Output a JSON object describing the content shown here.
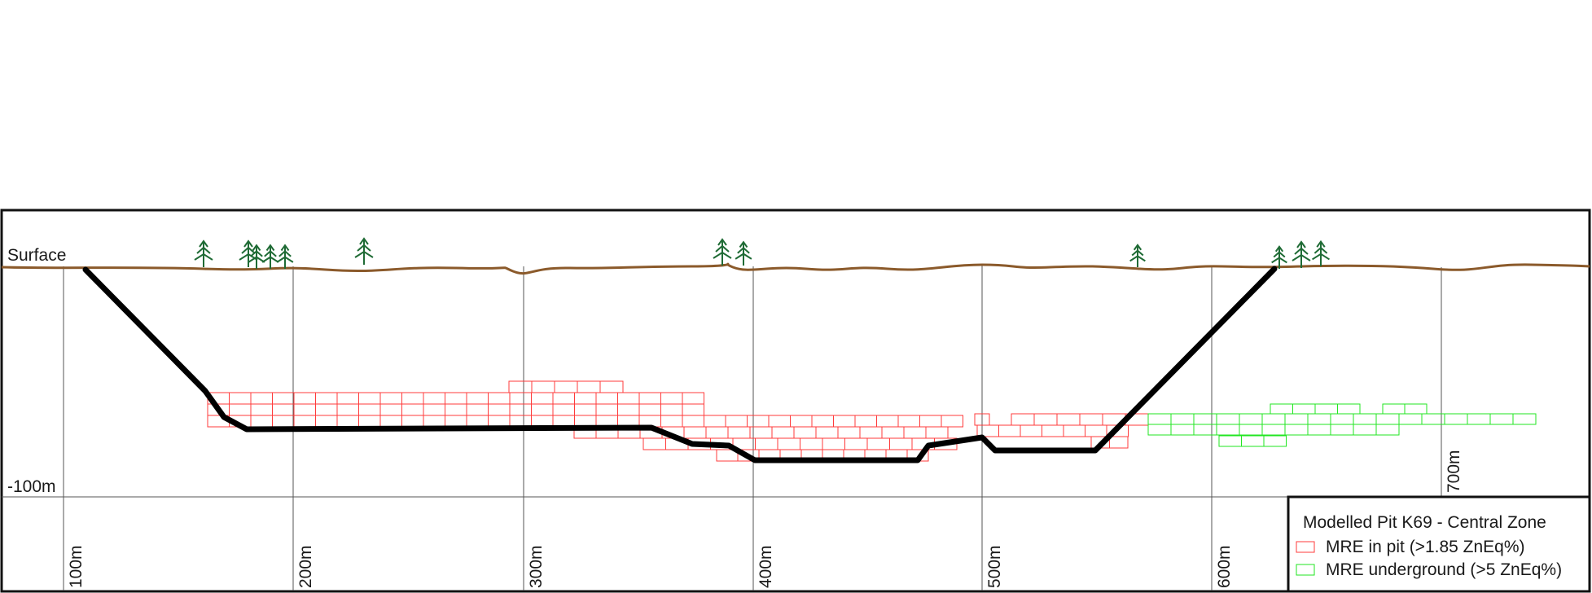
{
  "section": {
    "title": "Modelled Pit K69 - Central Zone",
    "surface_label": "Surface",
    "depth_label": "-100m",
    "distance_labels": [
      "100m",
      "200m",
      "300m",
      "400m",
      "500m",
      "600m",
      "700m"
    ]
  },
  "legend": {
    "title": "Modelled Pit K69 - Central Zone",
    "items": [
      {
        "label": "MRE in pit (>1.85 ZnEq%)",
        "color": "#ff3b3b"
      },
      {
        "label": "MRE underground (>5 ZnEq%)",
        "color": "#22e622"
      }
    ]
  },
  "colors": {
    "frame": "#111111",
    "grid": "#555555",
    "surface": "#8b5a2b",
    "pit_outline": "#000000",
    "tree": "#1f6b35",
    "mre_in_pit": "#ff3b3b",
    "mre_underground": "#22e622"
  }
}
